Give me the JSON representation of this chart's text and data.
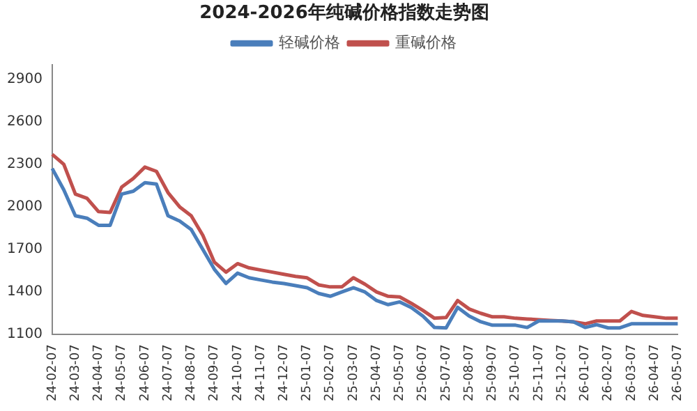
{
  "chart_data": {
    "type": "line",
    "title": "2024-2026年纯碱价格指数走势图",
    "categories": [
      "24-02-07",
      null,
      "24-03-07",
      null,
      "24-04-07",
      null,
      "24-05-07",
      null,
      "24-06-07",
      null,
      "24-07-07",
      null,
      "24-08-07",
      null,
      "24-09-07",
      null,
      "24-10-07",
      null,
      "24-11-07",
      null,
      "24-12-07",
      null,
      "25-01-07",
      null,
      "25-02-07",
      null,
      "25-03-07",
      null,
      "25-04-07",
      null,
      "25-05-07",
      null,
      "25-06-07",
      null,
      "25-07-07",
      null,
      "25-08-07",
      null,
      "25-09-07",
      null,
      "25-10-07",
      null,
      "25-11-07",
      null,
      "25-12-07",
      null,
      "26-01-07",
      null,
      "26-02-07",
      null,
      "26-03-07",
      null,
      "26-04-07",
      null,
      "26-05-07"
    ],
    "series": [
      {
        "name": "轻碱价格",
        "color": "#4a7ebb",
        "values": [
          2270,
          2120,
          1937,
          1920,
          1870,
          1870,
          2090,
          2110,
          2170,
          2160,
          1937,
          1900,
          1840,
          1700,
          1560,
          1460,
          1533,
          1500,
          1485,
          1470,
          1460,
          1445,
          1430,
          1390,
          1370,
          1400,
          1430,
          1400,
          1340,
          1311,
          1330,
          1290,
          1230,
          1150,
          1147,
          1292,
          1230,
          1190,
          1166,
          1166,
          1166,
          1150,
          1196,
          1196,
          1196,
          1190,
          1150,
          1170,
          1147,
          1147,
          1176,
          1176,
          1176,
          1176,
          1176
        ]
      },
      {
        "name": "重碱价格",
        "color": "#c0504d",
        "values": [
          2370,
          2300,
          2090,
          2060,
          1966,
          1960,
          2140,
          2200,
          2280,
          2250,
          2100,
          2000,
          1937,
          1800,
          1610,
          1540,
          1600,
          1570,
          1555,
          1540,
          1525,
          1510,
          1500,
          1450,
          1436,
          1436,
          1500,
          1455,
          1400,
          1370,
          1365,
          1320,
          1270,
          1215,
          1220,
          1340,
          1280,
          1250,
          1225,
          1225,
          1215,
          1210,
          1205,
          1200,
          1196,
          1190,
          1176,
          1196,
          1196,
          1196,
          1263,
          1235,
          1225,
          1215,
          1215
        ]
      }
    ],
    "ylim": [
      1100,
      3000
    ],
    "yticks": [
      1100,
      1400,
      1700,
      2000,
      2300,
      2600,
      2900
    ],
    "grid": false,
    "legend": "top",
    "marker": "none",
    "line_style": "solid"
  }
}
